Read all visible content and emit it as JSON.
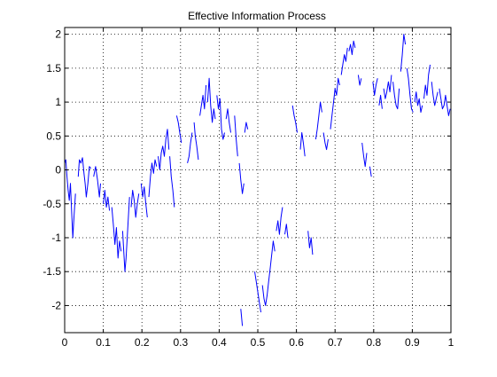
{
  "chart_data": {
    "type": "line",
    "title": "Effective Information Process",
    "xlabel": "",
    "ylabel": "",
    "xlim": [
      0,
      1
    ],
    "ylim": [
      -2.4,
      2.1
    ],
    "xticks": [
      0,
      0.1,
      0.2,
      0.3,
      0.4,
      0.5,
      0.6,
      0.7,
      0.8,
      0.9,
      1
    ],
    "xtick_labels": [
      "0",
      "0.1",
      "0.2",
      "0.3",
      "0.4",
      "0.5",
      "0.6",
      "0.7",
      "0.8",
      "0.9",
      "1"
    ],
    "yticks": [
      2,
      1.5,
      1,
      0.5,
      0,
      -0.5,
      -1,
      -1.5,
      -2
    ],
    "ytick_labels": [
      "2",
      "1.5",
      "1",
      "0.5",
      "0",
      "-0.5",
      "-1",
      "-1.5",
      "-2"
    ],
    "grid": "dotted",
    "legend": "none",
    "series_color": "#0000ff",
    "series": [
      {
        "note_style": "segmented",
        "segments": [
          [
            [
              0.0,
              0.1
            ],
            [
              0.003,
              0.15
            ],
            [
              0.006,
              -0.1
            ],
            [
              0.009,
              -0.3
            ],
            [
              0.012,
              -0.45
            ],
            [
              0.015,
              -0.2
            ],
            [
              0.018,
              -0.6
            ],
            [
              0.021,
              -1.0
            ],
            [
              0.024,
              -0.7
            ],
            [
              0.028,
              -0.35
            ]
          ],
          [
            [
              0.035,
              -0.1
            ],
            [
              0.038,
              0.15
            ],
            [
              0.042,
              0.1
            ],
            [
              0.046,
              0.18
            ],
            [
              0.05,
              -0.05
            ],
            [
              0.053,
              -0.2
            ],
            [
              0.056,
              -0.4
            ],
            [
              0.06,
              -0.2
            ],
            [
              0.064,
              0.05
            ],
            [
              0.068,
              0.02
            ]
          ],
          [
            [
              0.075,
              -0.1
            ],
            [
              0.08,
              0.05
            ],
            [
              0.085,
              -0.15
            ],
            [
              0.09,
              -0.4
            ],
            [
              0.093,
              -0.2
            ]
          ],
          [
            [
              0.1,
              -0.5
            ],
            [
              0.104,
              -0.3
            ],
            [
              0.108,
              -0.55
            ],
            [
              0.112,
              -0.4
            ],
            [
              0.116,
              -0.6
            ]
          ],
          [
            [
              0.122,
              -0.55
            ],
            [
              0.126,
              -0.8
            ],
            [
              0.13,
              -1.1
            ],
            [
              0.134,
              -0.85
            ],
            [
              0.138,
              -1.3
            ],
            [
              0.142,
              -1.05
            ],
            [
              0.146,
              -1.2
            ]
          ],
          [
            [
              0.15,
              -0.9
            ],
            [
              0.153,
              -1.2
            ],
            [
              0.156,
              -1.5
            ],
            [
              0.159,
              -1.3
            ],
            [
              0.162,
              -1.0
            ],
            [
              0.165,
              -0.7
            ],
            [
              0.168,
              -0.4
            ]
          ],
          [
            [
              0.172,
              -0.55
            ],
            [
              0.176,
              -0.3
            ],
            [
              0.18,
              -0.45
            ],
            [
              0.184,
              -0.7
            ],
            [
              0.188,
              -0.5
            ],
            [
              0.192,
              -0.35
            ]
          ],
          [
            [
              0.198,
              -0.2
            ],
            [
              0.202,
              -0.4
            ],
            [
              0.206,
              -0.25
            ],
            [
              0.21,
              -0.5
            ],
            [
              0.214,
              -0.7
            ]
          ],
          [
            [
              0.218,
              -0.4
            ],
            [
              0.222,
              -0.1
            ],
            [
              0.226,
              0.1
            ],
            [
              0.23,
              -0.05
            ],
            [
              0.234,
              0.15
            ],
            [
              0.238,
              0.05
            ]
          ],
          [
            [
              0.242,
              0.2
            ],
            [
              0.246,
              0.0
            ],
            [
              0.25,
              0.25
            ],
            [
              0.254,
              0.35
            ],
            [
              0.258,
              0.2
            ],
            [
              0.262,
              0.45
            ],
            [
              0.266,
              0.6
            ],
            [
              0.27,
              0.3
            ]
          ],
          [
            [
              0.272,
              0.2
            ],
            [
              0.276,
              -0.1
            ],
            [
              0.28,
              -0.3
            ],
            [
              0.284,
              -0.55
            ]
          ],
          [
            [
              0.29,
              0.8
            ],
            [
              0.294,
              0.7
            ],
            [
              0.298,
              0.55
            ],
            [
              0.302,
              0.4
            ]
          ],
          [
            [
              0.318,
              0.1
            ],
            [
              0.322,
              0.2
            ],
            [
              0.326,
              0.4
            ],
            [
              0.33,
              0.55
            ]
          ],
          [
            [
              0.335,
              0.7
            ],
            [
              0.338,
              0.5
            ],
            [
              0.342,
              0.35
            ],
            [
              0.346,
              0.15
            ]
          ],
          [
            [
              0.35,
              0.8
            ],
            [
              0.354,
              0.95
            ],
            [
              0.358,
              1.1
            ],
            [
              0.362,
              0.9
            ],
            [
              0.366,
              1.25
            ]
          ],
          [
            [
              0.37,
              1.0
            ],
            [
              0.374,
              1.35
            ],
            [
              0.378,
              0.95
            ],
            [
              0.382,
              0.7
            ],
            [
              0.386,
              0.9
            ],
            [
              0.39,
              0.75
            ]
          ],
          [
            [
              0.394,
              1.1
            ],
            [
              0.398,
              0.9
            ],
            [
              0.402,
              1.05
            ],
            [
              0.406,
              0.6
            ],
            [
              0.41,
              0.45
            ],
            [
              0.414,
              0.55
            ]
          ],
          [
            [
              0.418,
              0.75
            ],
            [
              0.422,
              0.9
            ],
            [
              0.426,
              0.7
            ],
            [
              0.43,
              0.55
            ]
          ],
          [
            [
              0.44,
              0.8
            ],
            [
              0.444,
              0.45
            ],
            [
              0.448,
              0.2
            ]
          ],
          [
            [
              0.452,
              0.1
            ],
            [
              0.456,
              -0.15
            ],
            [
              0.46,
              -0.35
            ],
            [
              0.464,
              -0.2
            ]
          ],
          [
            [
              0.466,
              0.55
            ],
            [
              0.47,
              0.7
            ],
            [
              0.474,
              0.6
            ]
          ],
          [
            [
              0.456,
              -2.05
            ],
            [
              0.46,
              -2.3
            ]
          ],
          [
            [
              0.492,
              -1.5
            ],
            [
              0.496,
              -1.65
            ],
            [
              0.5,
              -1.8
            ],
            [
              0.504,
              -1.95
            ],
            [
              0.508,
              -2.1
            ]
          ],
          [
            [
              0.512,
              -1.7
            ],
            [
              0.516,
              -1.9
            ],
            [
              0.52,
              -2.0
            ],
            [
              0.524,
              -1.85
            ],
            [
              0.528,
              -1.65
            ],
            [
              0.532,
              -1.45
            ],
            [
              0.536,
              -1.25
            ],
            [
              0.54,
              -1.05
            ],
            [
              0.544,
              -1.2
            ]
          ],
          [
            [
              0.548,
              -0.9
            ],
            [
              0.552,
              -0.75
            ],
            [
              0.556,
              -0.95
            ],
            [
              0.56,
              -0.7
            ],
            [
              0.564,
              -0.55
            ]
          ],
          [
            [
              0.57,
              -0.95
            ],
            [
              0.574,
              -0.8
            ],
            [
              0.578,
              -1.0
            ]
          ],
          [
            [
              0.59,
              0.95
            ],
            [
              0.594,
              0.8
            ],
            [
              0.598,
              0.7
            ],
            [
              0.602,
              0.55
            ]
          ],
          [
            [
              0.61,
              0.3
            ],
            [
              0.614,
              0.55
            ],
            [
              0.618,
              0.4
            ],
            [
              0.622,
              0.2
            ]
          ],
          [
            [
              0.63,
              -0.9
            ],
            [
              0.634,
              -1.15
            ],
            [
              0.638,
              -1.0
            ],
            [
              0.642,
              -1.25
            ]
          ],
          [
            [
              0.65,
              0.45
            ],
            [
              0.654,
              0.6
            ],
            [
              0.658,
              0.8
            ],
            [
              0.662,
              1.0
            ],
            [
              0.666,
              0.85
            ]
          ],
          [
            [
              0.67,
              0.55
            ],
            [
              0.674,
              0.4
            ],
            [
              0.678,
              0.3
            ],
            [
              0.682,
              0.45
            ]
          ],
          [
            [
              0.688,
              0.6
            ],
            [
              0.692,
              0.8
            ],
            [
              0.696,
              1.0
            ],
            [
              0.7,
              1.2
            ],
            [
              0.704,
              1.1
            ],
            [
              0.708,
              1.35
            ],
            [
              0.712,
              1.25
            ]
          ],
          [
            [
              0.716,
              1.4
            ],
            [
              0.72,
              1.55
            ],
            [
              0.724,
              1.7
            ],
            [
              0.728,
              1.6
            ],
            [
              0.732,
              1.8
            ]
          ],
          [
            [
              0.736,
              1.75
            ],
            [
              0.74,
              1.85
            ],
            [
              0.744,
              1.7
            ],
            [
              0.748,
              1.9
            ],
            [
              0.752,
              1.8
            ]
          ],
          [
            [
              0.76,
              1.4
            ],
            [
              0.764,
              1.25
            ],
            [
              0.768,
              1.35
            ]
          ],
          [
            [
              0.77,
              0.4
            ],
            [
              0.774,
              0.2
            ],
            [
              0.778,
              0.05
            ],
            [
              0.782,
              0.25
            ]
          ],
          [
            [
              0.79,
              0.05
            ],
            [
              0.794,
              -0.1
            ]
          ],
          [
            [
              0.798,
              1.3
            ],
            [
              0.802,
              1.1
            ],
            [
              0.806,
              1.25
            ],
            [
              0.81,
              1.35
            ]
          ],
          [
            [
              0.814,
              0.95
            ],
            [
              0.818,
              1.1
            ],
            [
              0.822,
              0.9
            ]
          ],
          [
            [
              0.826,
              1.2
            ],
            [
              0.83,
              1.05
            ],
            [
              0.834,
              1.15
            ],
            [
              0.838,
              1.3
            ],
            [
              0.842,
              1.15
            ],
            [
              0.846,
              1.4
            ]
          ],
          [
            [
              0.85,
              1.3
            ],
            [
              0.854,
              1.1
            ],
            [
              0.858,
              0.95
            ],
            [
              0.862,
              0.9
            ],
            [
              0.866,
              1.2
            ]
          ],
          [
            [
              0.87,
              1.45
            ],
            [
              0.874,
              1.7
            ],
            [
              0.878,
              2.0
            ],
            [
              0.882,
              1.85
            ]
          ],
          [
            [
              0.886,
              1.5
            ],
            [
              0.89,
              1.35
            ],
            [
              0.894,
              1.1
            ],
            [
              0.898,
              0.9
            ],
            [
              0.902,
              0.85
            ]
          ],
          [
            [
              0.906,
              1.0
            ],
            [
              0.91,
              1.15
            ],
            [
              0.914,
              0.95
            ],
            [
              0.918,
              1.05
            ],
            [
              0.922,
              0.85
            ],
            [
              0.926,
              0.95
            ]
          ],
          [
            [
              0.93,
              1.05
            ],
            [
              0.934,
              1.25
            ],
            [
              0.938,
              1.1
            ],
            [
              0.942,
              1.4
            ],
            [
              0.946,
              1.55
            ]
          ],
          [
            [
              0.95,
              1.3
            ],
            [
              0.954,
              1.1
            ],
            [
              0.958,
              0.95
            ],
            [
              0.962,
              1.05
            ],
            [
              0.966,
              1.15
            ]
          ],
          [
            [
              0.97,
              1.2
            ],
            [
              0.974,
              1.05
            ],
            [
              0.978,
              0.9
            ],
            [
              0.982,
              0.95
            ],
            [
              0.986,
              1.1
            ],
            [
              0.99,
              0.95
            ],
            [
              0.994,
              0.8
            ],
            [
              0.998,
              0.9
            ]
          ]
        ]
      }
    ]
  }
}
